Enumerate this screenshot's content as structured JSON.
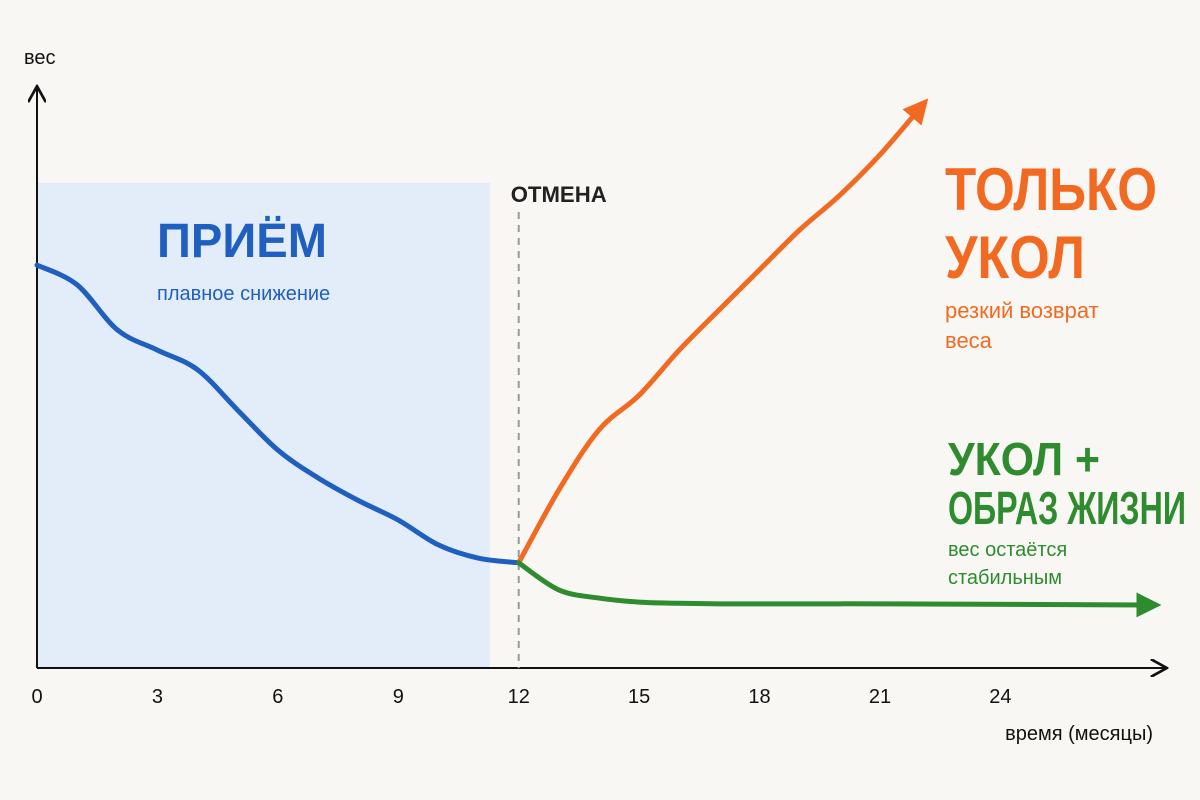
{
  "chart_data": {
    "type": "line",
    "y_label": "вес",
    "x_label": "время (месяцы)",
    "x": [
      0,
      1,
      2,
      3,
      4,
      5,
      6,
      7,
      8,
      9,
      10,
      11,
      12,
      13,
      14,
      15,
      16,
      17,
      18,
      19,
      20,
      21,
      22,
      27.7
    ],
    "xlim": [
      0,
      28.1
    ],
    "xticks": [
      0,
      3,
      6,
      9,
      12,
      15,
      18,
      21,
      24
    ],
    "ylim": [
      0,
      100
    ],
    "annotations": [
      {
        "text": "ОТМЕНА",
        "x": 12
      }
    ],
    "series": [
      {
        "label": [
          "ПРИЁМ"
        ],
        "note": [
          "плавное снижение"
        ],
        "color": "#1f5fbf",
        "values": [
          69.7,
          66.3,
          58.5,
          55,
          51.6,
          44.6,
          37.7,
          32.9,
          29,
          25.6,
          21.3,
          19,
          18.2,
          null,
          null,
          null,
          null,
          null,
          null,
          null,
          null,
          null,
          null,
          null
        ]
      },
      {
        "label": [
          "ТОЛЬКО",
          "УКОЛ"
        ],
        "note": [
          "резкий возврат",
          "веса"
        ],
        "color": "#f26a21",
        "values": [
          null,
          null,
          null,
          null,
          null,
          null,
          null,
          null,
          null,
          null,
          null,
          null,
          18.2,
          30.8,
          41.2,
          47.2,
          55,
          62,
          68.9,
          75.8,
          81.8,
          88.8,
          96.9,
          null
        ]
      },
      {
        "label": [
          "УКОЛ +",
          "ОБРАЗ ЖИЗНИ"
        ],
        "note": [
          "вес остаётся",
          "стабильным"
        ],
        "color": "#2e8b2e",
        "values": [
          null,
          null,
          null,
          null,
          null,
          null,
          null,
          null,
          null,
          null,
          null,
          null,
          18.2,
          13.5,
          12.1,
          11.4,
          11.2,
          11.1,
          11.1,
          11.1,
          11.1,
          11.1,
          null,
          10.9
        ]
      }
    ]
  }
}
